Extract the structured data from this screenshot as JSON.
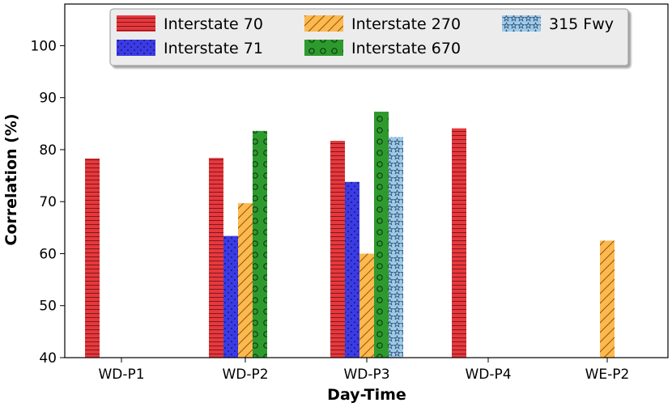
{
  "chart_data": {
    "type": "bar",
    "title": "",
    "xlabel": "Day-Time",
    "ylabel": "Correlation (%)",
    "ylim": [
      40,
      108
    ],
    "yticks": [
      40,
      50,
      60,
      70,
      80,
      90,
      100
    ],
    "categories": [
      "WD-P1",
      "WD-P2",
      "WD-P3",
      "WD-P4",
      "WE-P2"
    ],
    "series": [
      {
        "name": "Interstate 70",
        "color": "#e8383d",
        "pattern": "hlines",
        "values": [
          78.3,
          78.4,
          81.7,
          84.1,
          null
        ]
      },
      {
        "name": "Interstate 71",
        "color": "#3b3be6",
        "pattern": "dots",
        "values": [
          null,
          63.4,
          73.8,
          null,
          null
        ]
      },
      {
        "name": "Interstate 270",
        "color": "#fdb84e",
        "pattern": "diag",
        "values": [
          null,
          69.7,
          60.0,
          null,
          62.5
        ]
      },
      {
        "name": "Interstate 670",
        "color": "#2e9a2e",
        "pattern": "circles",
        "values": [
          null,
          83.6,
          87.3,
          null,
          null
        ]
      },
      {
        "name": "315 Fwy",
        "color": "#9ccbec",
        "pattern": "stars",
        "values": [
          null,
          null,
          82.4,
          null,
          null
        ]
      }
    ],
    "legend_position": "top-center",
    "grid": false
  }
}
